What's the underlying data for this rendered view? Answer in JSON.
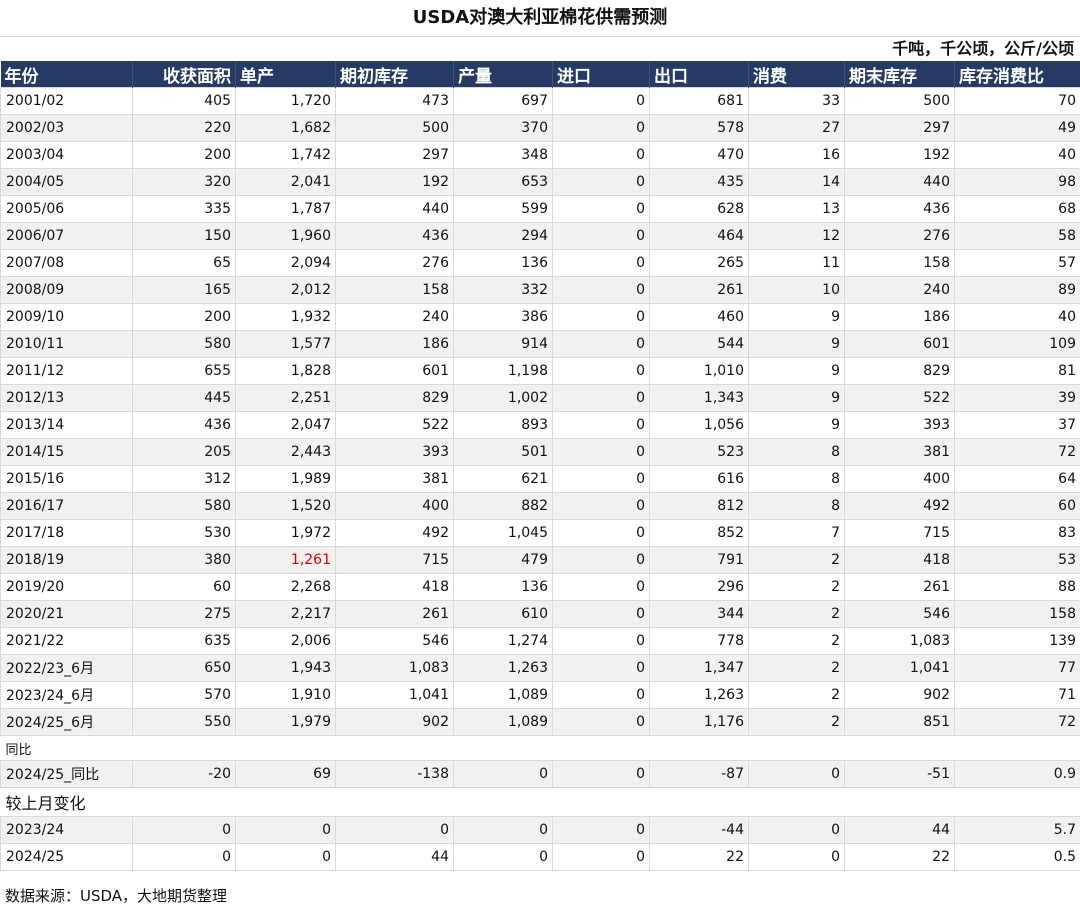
{
  "title": "USDA对澳大利亚棉花供需预测",
  "unit": "千吨，千公顷，公斤/公顷",
  "headers": [
    "年份",
    "收获面积",
    "单产",
    "期初库存",
    "产量",
    "进口",
    "出口",
    "消费",
    "期末库存",
    "库存消费比"
  ],
  "rows": [
    {
      "year": "2001/02",
      "v": [
        "405",
        "1,720",
        "473",
        "697",
        "0",
        "681",
        "33",
        "500",
        "70"
      ]
    },
    {
      "year": "2002/03",
      "v": [
        "220",
        "1,682",
        "500",
        "370",
        "0",
        "578",
        "27",
        "297",
        "49"
      ]
    },
    {
      "year": "2003/04",
      "v": [
        "200",
        "1,742",
        "297",
        "348",
        "0",
        "470",
        "16",
        "192",
        "40"
      ]
    },
    {
      "year": "2004/05",
      "v": [
        "320",
        "2,041",
        "192",
        "653",
        "0",
        "435",
        "14",
        "440",
        "98"
      ]
    },
    {
      "year": "2005/06",
      "v": [
        "335",
        "1,787",
        "440",
        "599",
        "0",
        "628",
        "13",
        "436",
        "68"
      ]
    },
    {
      "year": "2006/07",
      "v": [
        "150",
        "1,960",
        "436",
        "294",
        "0",
        "464",
        "12",
        "276",
        "58"
      ]
    },
    {
      "year": "2007/08",
      "v": [
        "65",
        "2,094",
        "276",
        "136",
        "0",
        "265",
        "11",
        "158",
        "57"
      ]
    },
    {
      "year": "2008/09",
      "v": [
        "165",
        "2,012",
        "158",
        "332",
        "0",
        "261",
        "10",
        "240",
        "89"
      ]
    },
    {
      "year": "2009/10",
      "v": [
        "200",
        "1,932",
        "240",
        "386",
        "0",
        "460",
        "9",
        "186",
        "40"
      ]
    },
    {
      "year": "2010/11",
      "v": [
        "580",
        "1,577",
        "186",
        "914",
        "0",
        "544",
        "9",
        "601",
        "109"
      ]
    },
    {
      "year": "2011/12",
      "v": [
        "655",
        "1,828",
        "601",
        "1,198",
        "0",
        "1,010",
        "9",
        "829",
        "81"
      ]
    },
    {
      "year": "2012/13",
      "v": [
        "445",
        "2,251",
        "829",
        "1,002",
        "0",
        "1,343",
        "9",
        "522",
        "39"
      ]
    },
    {
      "year": "2013/14",
      "v": [
        "436",
        "2,047",
        "522",
        "893",
        "0",
        "1,056",
        "9",
        "393",
        "37"
      ]
    },
    {
      "year": "2014/15",
      "v": [
        "205",
        "2,443",
        "393",
        "501",
        "0",
        "523",
        "8",
        "381",
        "72"
      ]
    },
    {
      "year": "2015/16",
      "v": [
        "312",
        "1,989",
        "381",
        "621",
        "0",
        "616",
        "8",
        "400",
        "64"
      ]
    },
    {
      "year": "2016/17",
      "v": [
        "580",
        "1,520",
        "400",
        "882",
        "0",
        "812",
        "8",
        "492",
        "60"
      ]
    },
    {
      "year": "2017/18",
      "v": [
        "530",
        "1,972",
        "492",
        "1,045",
        "0",
        "852",
        "7",
        "715",
        "83"
      ]
    },
    {
      "year": "2018/19",
      "v": [
        "380",
        "1,261",
        "715",
        "479",
        "0",
        "791",
        "2",
        "418",
        "53"
      ],
      "highlight_col": 1
    },
    {
      "year": "2019/20",
      "v": [
        "60",
        "2,268",
        "418",
        "136",
        "0",
        "296",
        "2",
        "261",
        "88"
      ]
    },
    {
      "year": "2020/21",
      "v": [
        "275",
        "2,217",
        "261",
        "610",
        "0",
        "344",
        "2",
        "546",
        "158"
      ]
    },
    {
      "year": "2021/22",
      "v": [
        "635",
        "2,006",
        "546",
        "1,274",
        "0",
        "778",
        "2",
        "1,083",
        "139"
      ]
    },
    {
      "year": "2022/23_6月",
      "v": [
        "650",
        "1,943",
        "1,083",
        "1,263",
        "0",
        "1,347",
        "2",
        "1,041",
        "77"
      ]
    },
    {
      "year": "2023/24_6月",
      "v": [
        "570",
        "1,910",
        "1,041",
        "1,089",
        "0",
        "1,263",
        "2",
        "902",
        "71"
      ]
    },
    {
      "year": "2024/25_6月",
      "v": [
        "550",
        "1,979",
        "902",
        "1,089",
        "0",
        "1,176",
        "2",
        "851",
        "72"
      ]
    }
  ],
  "yoy_section": "同比",
  "yoy_rows": [
    {
      "year": "2024/25_同比",
      "v": [
        "-20",
        "69",
        "-138",
        "0",
        "0",
        "-87",
        "0",
        "-51",
        "0.9"
      ]
    }
  ],
  "mom_section": "较上月变化",
  "mom_rows": [
    {
      "year": "2023/24",
      "v": [
        "0",
        "0",
        "0",
        "0",
        "0",
        "-44",
        "0",
        "44",
        "5.7"
      ]
    },
    {
      "year": "2024/25",
      "v": [
        "0",
        "0",
        "44",
        "0",
        "0",
        "22",
        "0",
        "22",
        "0.5"
      ]
    }
  ],
  "source": "数据来源：USDA，大地期货整理",
  "colors": {
    "header_bg": "#253b63",
    "highlight": "#e00000"
  }
}
